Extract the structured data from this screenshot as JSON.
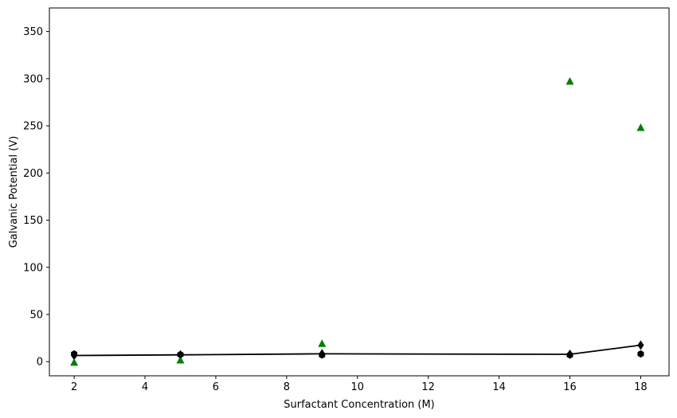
{
  "chart_data": {
    "type": "line",
    "xlabel": "Surfactant Concentration (M)",
    "ylabel": "Galvanic Potential (V)",
    "xlim": [
      1.3,
      18.8
    ],
    "ylim": [
      -15,
      375
    ],
    "xticks": [
      2,
      4,
      6,
      8,
      10,
      12,
      14,
      16,
      18
    ],
    "yticks": [
      0,
      50,
      100,
      150,
      200,
      250,
      300,
      350
    ],
    "grid": false,
    "legend": "none",
    "series": [
      {
        "marker": "line-diamond",
        "color": "#000000",
        "x": [
          2,
          5,
          9,
          16,
          18
        ],
        "y": [
          6.5,
          7.2,
          8.3,
          7.8,
          17.5
        ]
      },
      {
        "marker": "triangle",
        "color": "#008000",
        "x": [
          2,
          5,
          9,
          16,
          18
        ],
        "y": [
          -1,
          1.5,
          19,
          297,
          248
        ]
      },
      {
        "marker": "hexagon",
        "color": "#000000",
        "x": [
          2,
          5,
          9,
          16,
          18
        ],
        "y": [
          8.2,
          7.5,
          7.0,
          7.0,
          8.2
        ]
      }
    ]
  }
}
